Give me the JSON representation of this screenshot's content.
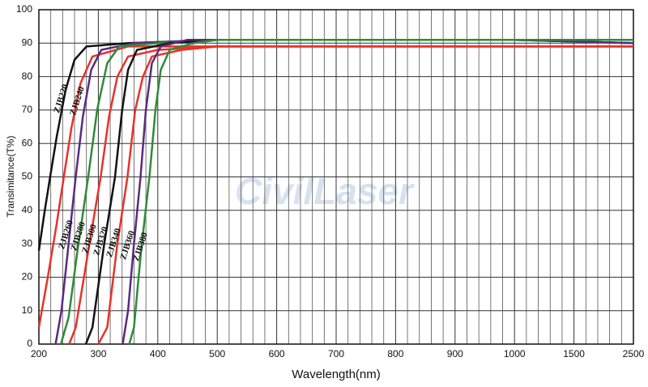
{
  "chart_data": {
    "type": "line",
    "x_label": "Wavelength(nm)",
    "y_label": "Transimitance(T%)",
    "watermark": "CivilLaser",
    "xlim": [
      200,
      2500
    ],
    "xticks": [
      200,
      300,
      400,
      500,
      600,
      700,
      800,
      900,
      1000,
      1500,
      2500
    ],
    "ylim": [
      0,
      100
    ],
    "yticks": [
      0,
      10,
      20,
      30,
      40,
      50,
      60,
      70,
      80,
      90,
      100
    ],
    "grid": true,
    "series": [
      {
        "name": "ZJB220",
        "color": "#111111",
        "x": [
          200,
          210,
          219,
          230,
          245,
          260,
          280,
          350,
          500,
          1000,
          2500
        ],
        "values": [
          28,
          40,
          50,
          62,
          76,
          85,
          89,
          90,
          91,
          91,
          91
        ]
      },
      {
        "name": "ZJB240",
        "color": "#e8322a",
        "x": [
          200,
          215,
          230,
          242,
          255,
          270,
          290,
          350,
          500,
          1000,
          2500
        ],
        "values": [
          5,
          20,
          36,
          50,
          65,
          78,
          86,
          89,
          89,
          89,
          89
        ]
      },
      {
        "name": "ZJB260",
        "color": "#5a2a82",
        "x": [
          228,
          238,
          250,
          262,
          274,
          288,
          305,
          360,
          500,
          1000,
          2500
        ],
        "values": [
          0,
          10,
          30,
          50,
          68,
          82,
          88,
          90,
          91,
          91,
          90
        ]
      },
      {
        "name": "ZJB280",
        "color": "#2e8b3a",
        "x": [
          237,
          250,
          265,
          283,
          298,
          315,
          335,
          400,
          500,
          1000,
          2500
        ],
        "values": [
          0,
          8,
          28,
          50,
          70,
          84,
          89,
          90,
          91,
          91,
          90
        ]
      },
      {
        "name": "ZJB300",
        "color": "#e8322a",
        "x": [
          251,
          262,
          285,
          304,
          318,
          332,
          350,
          400,
          500,
          1000,
          2500
        ],
        "values": [
          0,
          5,
          30,
          50,
          68,
          80,
          86,
          88,
          89,
          89,
          89
        ]
      },
      {
        "name": "ZJB320",
        "color": "#111111",
        "x": [
          279,
          290,
          310,
          328,
          340,
          350,
          365,
          420,
          500,
          1000,
          2500
        ],
        "values": [
          0,
          5,
          30,
          50,
          70,
          82,
          88,
          90,
          91,
          91,
          91
        ]
      },
      {
        "name": "ZJB340",
        "color": "#e8322a",
        "x": [
          300,
          315,
          332,
          349,
          362,
          375,
          390,
          440,
          500,
          1000,
          2500
        ],
        "values": [
          0,
          5,
          30,
          50,
          70,
          80,
          86,
          88,
          89,
          89,
          89
        ]
      },
      {
        "name": "ZJB360",
        "color": "#5a2a82",
        "x": [
          341,
          350,
          360,
          371,
          380,
          390,
          405,
          450,
          500,
          1000,
          2500
        ],
        "values": [
          0,
          10,
          30,
          50,
          70,
          84,
          89,
          91,
          91,
          91,
          90
        ]
      },
      {
        "name": "ZJB380",
        "color": "#2e8b3a",
        "x": [
          352,
          360,
          372,
          386,
          396,
          405,
          420,
          460,
          500,
          1000,
          2500
        ],
        "values": [
          0,
          5,
          28,
          50,
          70,
          82,
          88,
          90,
          91,
          91,
          91
        ]
      }
    ]
  }
}
